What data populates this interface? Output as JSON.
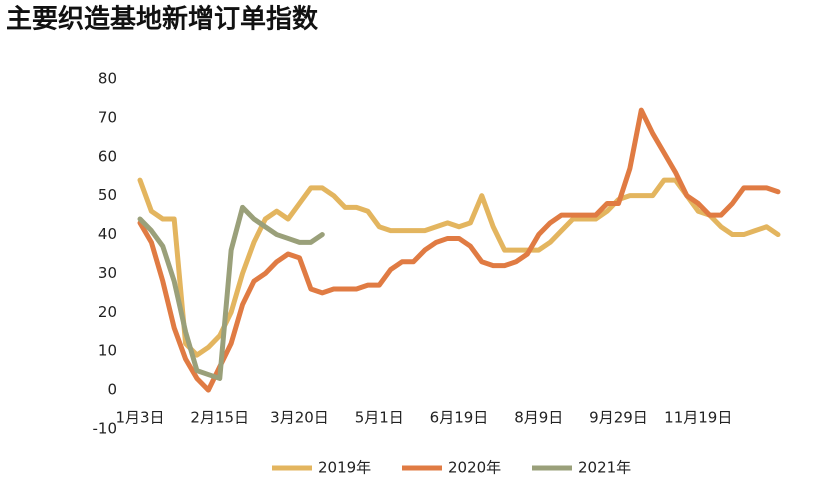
{
  "chart_data": {
    "type": "line",
    "title": "主要织造基地新增订单指数",
    "categories": [
      "1月3日",
      null,
      null,
      null,
      null,
      null,
      null,
      "2月15日",
      null,
      null,
      null,
      null,
      null,
      null,
      "3月20日",
      null,
      null,
      null,
      null,
      null,
      null,
      "5月1日",
      null,
      null,
      null,
      null,
      null,
      null,
      "6月19日",
      null,
      null,
      null,
      null,
      null,
      null,
      "8月9日",
      null,
      null,
      null,
      null,
      null,
      null,
      "9月29日",
      null,
      null,
      null,
      null,
      null,
      null,
      "11月19日",
      null,
      null,
      null,
      null,
      null,
      null,
      null
    ],
    "series": [
      {
        "name": "2019年",
        "color": "#e3b55f",
        "values": [
          54,
          46,
          44,
          44,
          12,
          9,
          11,
          14,
          20,
          30,
          38,
          44,
          46,
          44,
          48,
          52,
          52,
          50,
          47,
          47,
          46,
          42,
          41,
          41,
          41,
          41,
          42,
          43,
          42,
          43,
          50,
          42,
          36,
          36,
          36,
          36,
          38,
          41,
          44,
          44,
          44,
          46,
          49,
          50,
          50,
          50,
          54,
          54,
          50,
          46,
          45,
          42,
          40,
          40,
          41,
          42,
          40
        ]
      },
      {
        "name": "2020年",
        "color": "#e07b43",
        "values": [
          43,
          38,
          28,
          16,
          8,
          3,
          0,
          6,
          12,
          22,
          28,
          30,
          33,
          35,
          34,
          26,
          25,
          26,
          26,
          26,
          27,
          27,
          31,
          33,
          33,
          36,
          38,
          39,
          39,
          37,
          33,
          32,
          32,
          33,
          35,
          40,
          43,
          45,
          45,
          45,
          45,
          48,
          48,
          57,
          72,
          66,
          61,
          56,
          50,
          48,
          45,
          45,
          48,
          52,
          52,
          52,
          51
        ]
      },
      {
        "name": "2021年",
        "color": "#9aa07a",
        "values": [
          44,
          41,
          37,
          28,
          15,
          5,
          4,
          3,
          36,
          47,
          44,
          42,
          40,
          39,
          38,
          38,
          40,
          null,
          null,
          null,
          null,
          null,
          null,
          null,
          null,
          null,
          null,
          null,
          null,
          null,
          null,
          null,
          null,
          null,
          null,
          null,
          null,
          null,
          null,
          null,
          null,
          null,
          null,
          null,
          null,
          null,
          null,
          null,
          null,
          null,
          null,
          null,
          null,
          null,
          null,
          null,
          null
        ]
      }
    ],
    "ylim": [
      -10,
      80
    ],
    "yticks": [
      -10,
      0,
      10,
      20,
      30,
      40,
      50,
      60,
      70,
      80
    ],
    "legend": "bottom"
  }
}
